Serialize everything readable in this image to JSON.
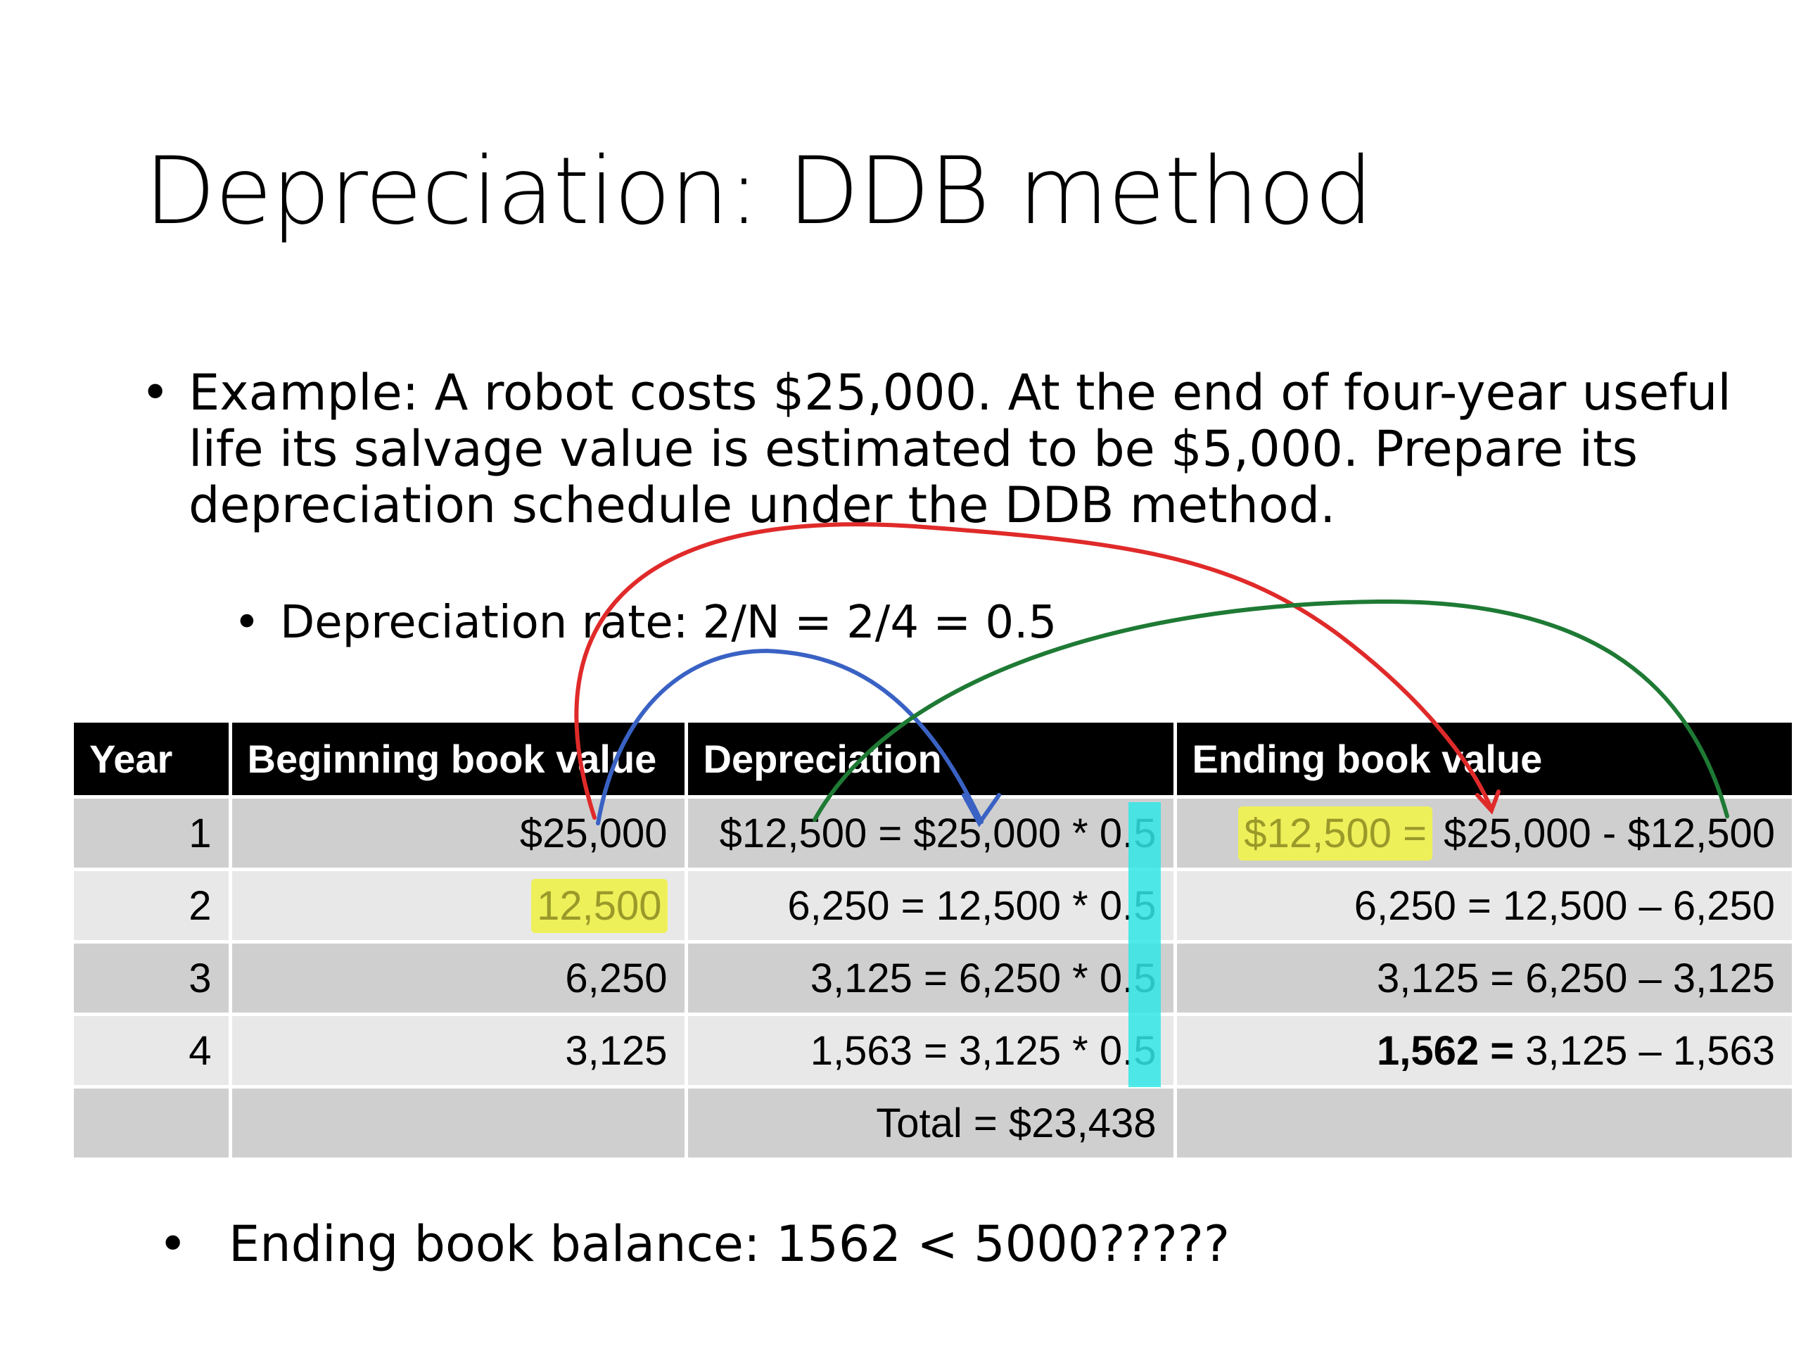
{
  "slide": {
    "title": "Depreciation: DDB method",
    "bullet_main": "Example: A robot costs $25,000. At the end of four-year useful life its salvage value is estimated to be $5,000. Prepare its depreciation schedule under the DDB method.",
    "bullet_sub": "Depreciation rate: 2/N = 2/4 = 0.5",
    "bullet_bottom": "Ending book balance: 1562 < 5000?????",
    "bullet_symbol": "•"
  },
  "table": {
    "headers": [
      "Year",
      "Beginning book value",
      "Depreciation",
      "Ending book value"
    ],
    "rows": [
      {
        "year": "1",
        "beginning": "$25,000",
        "depreciation": "$12,500 = $25,000 * 0.5",
        "ending_lead": "$12,500 =",
        "ending_rest": " $25,000 - $12,500"
      },
      {
        "year": "2",
        "beginning": "12,500",
        "depreciation": "6,250 = 12,500 * 0.5",
        "ending_lead": "",
        "ending_rest": "6,250 = 12,500 – 6,250"
      },
      {
        "year": "3",
        "beginning": "6,250",
        "depreciation": "3,125 = 6,250 * 0.5",
        "ending_lead": "",
        "ending_rest": "3,125 = 6,250 – 3,125"
      },
      {
        "year": "4",
        "beginning": "3,125",
        "depreciation": "1,563 = 3,125 * 0.5",
        "ending_lead": "1,562 =",
        "ending_rest": " 3,125 – 1,563"
      },
      {
        "year": "",
        "beginning": "",
        "depreciation": "Total = $23,438",
        "ending_lead": "",
        "ending_rest": ""
      }
    ]
  },
  "annotation_colors": {
    "red": "#e02a2a",
    "blue": "#3a62c4",
    "green": "#1e7a34",
    "cyan": "#33e6e6",
    "yellow": "#eef05a"
  }
}
